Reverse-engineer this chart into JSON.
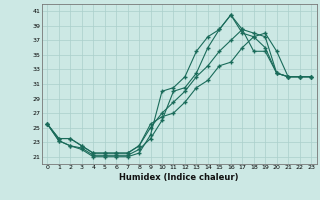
{
  "xlabel": "Humidex (Indice chaleur)",
  "bg_color": "#cce8e4",
  "grid_color": "#aacfcb",
  "line_color": "#1a6b5a",
  "xlim": [
    -0.5,
    23.5
  ],
  "ylim": [
    20.0,
    42.0
  ],
  "yticks": [
    21,
    23,
    25,
    27,
    29,
    31,
    33,
    35,
    37,
    39,
    41
  ],
  "xticks": [
    0,
    1,
    2,
    3,
    4,
    5,
    6,
    7,
    8,
    9,
    10,
    11,
    12,
    13,
    14,
    15,
    16,
    17,
    18,
    19,
    20,
    21,
    22,
    23
  ],
  "line1_x": [
    0,
    1,
    2,
    3,
    4,
    5,
    6,
    7,
    8,
    9,
    10,
    11,
    12,
    13,
    14,
    15,
    16,
    17,
    18,
    19,
    20,
    21,
    22,
    23
  ],
  "line1_y": [
    25.5,
    23.2,
    22.5,
    22.2,
    21.2,
    21.2,
    21.2,
    21.2,
    22.0,
    23.5,
    26.0,
    30.0,
    30.5,
    32.5,
    36.0,
    38.5,
    40.5,
    38.5,
    38.0,
    37.5,
    32.5,
    32.0,
    32.0,
    32.0
  ],
  "line2_x": [
    0,
    1,
    2,
    3,
    4,
    5,
    6,
    7,
    8,
    9,
    10,
    11,
    12,
    13,
    14,
    15,
    16,
    17,
    18,
    19,
    20,
    21,
    22,
    23
  ],
  "line2_y": [
    25.5,
    23.2,
    22.5,
    22.0,
    21.0,
    21.0,
    21.0,
    21.0,
    21.5,
    24.0,
    30.0,
    30.5,
    32.0,
    35.5,
    37.5,
    38.5,
    40.5,
    38.0,
    37.5,
    36.0,
    32.5,
    32.0,
    32.0,
    32.0
  ],
  "line3_x": [
    0,
    1,
    2,
    3,
    4,
    5,
    6,
    7,
    8,
    9,
    10,
    11,
    12,
    13,
    14,
    15,
    16,
    17,
    18,
    19,
    20,
    21,
    22,
    23
  ],
  "line3_y": [
    25.5,
    23.5,
    23.5,
    22.5,
    21.5,
    21.5,
    21.5,
    21.5,
    22.5,
    25.0,
    27.0,
    28.5,
    30.0,
    32.0,
    33.5,
    35.5,
    37.0,
    38.5,
    35.5,
    35.5,
    32.5,
    32.0,
    32.0,
    32.0
  ],
  "line4_x": [
    0,
    1,
    2,
    3,
    4,
    5,
    6,
    7,
    8,
    9,
    10,
    11,
    12,
    13,
    14,
    15,
    16,
    17,
    18,
    19,
    20,
    21,
    22,
    23
  ],
  "line4_y": [
    25.5,
    23.5,
    23.5,
    22.5,
    21.5,
    21.5,
    21.5,
    21.5,
    22.5,
    25.5,
    26.5,
    27.0,
    28.5,
    30.5,
    31.5,
    33.5,
    34.0,
    36.0,
    37.5,
    38.0,
    35.5,
    32.0,
    32.0,
    32.0
  ]
}
